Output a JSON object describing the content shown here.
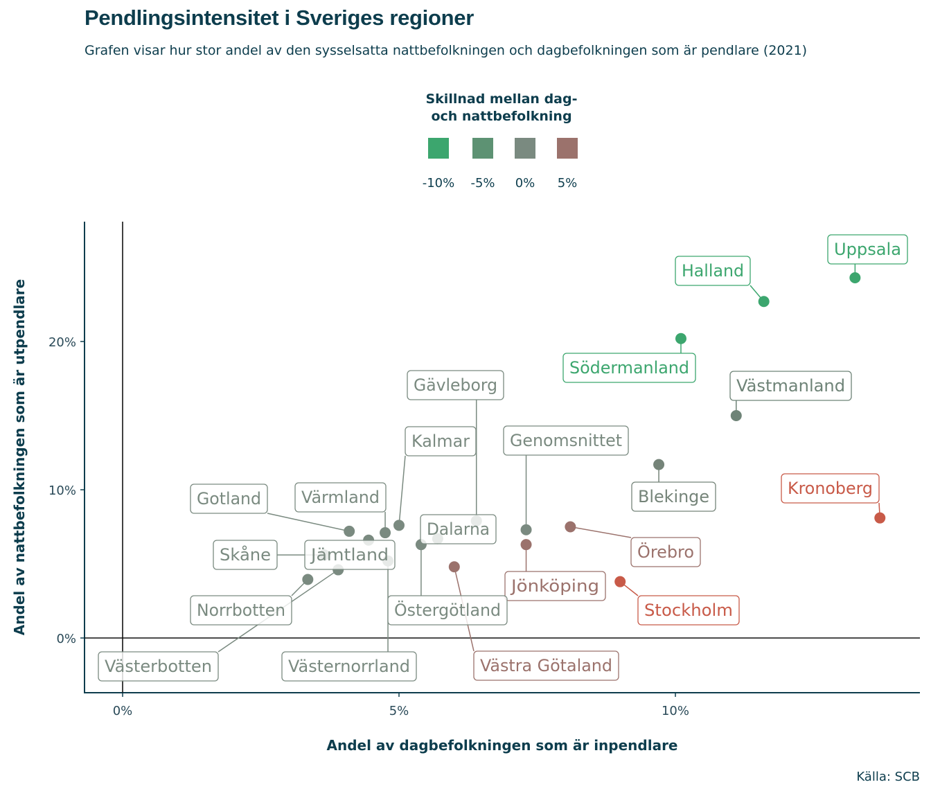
{
  "title": "Pendlingsintensitet i Sveriges regioner",
  "subtitle": "Grafen visar hur stor andel av den sysselsatta nattbefolkningen och dagbefolkningen som är pendlare (2021)",
  "caption": "Källa: SCB",
  "colors": {
    "text": "#0d3d4d",
    "neutral": "#7a8a80",
    "green": "#3ca66e",
    "green_mid": "#5a9272",
    "brown": "#9b726c",
    "red": "#c85a48"
  },
  "chart_data": {
    "type": "scatter",
    "title": "Pendlingsintensitet i Sveriges regioner",
    "xlabel": "Andel av dagbefolkningen som är inpendlare",
    "ylabel": "Andel av nattbefolkningen som är utpendlare",
    "xlim": [
      -0.7,
      14.4
    ],
    "ylim": [
      -3.7,
      27.5
    ],
    "xticks": [
      {
        "value": 0,
        "label": "0%"
      },
      {
        "value": 5,
        "label": "5%"
      },
      {
        "value": 10,
        "label": "10%"
      }
    ],
    "yticks": [
      {
        "value": 0,
        "label": "0%"
      },
      {
        "value": 10,
        "label": "10%"
      },
      {
        "value": 20,
        "label": "20%"
      }
    ],
    "legend": {
      "title_lines": [
        "Skillnad mellan dag-",
        "och nattbefolkning"
      ],
      "placement": "top-center",
      "items": [
        {
          "label": "-10%",
          "color": "#3ca66e"
        },
        {
          "label": "-5%",
          "color": "#5d9273"
        },
        {
          "label": "0%",
          "color": "#7a8a80"
        },
        {
          "label": "5%",
          "color": "#9b726c"
        }
      ]
    },
    "points": [
      {
        "name": "Uppsala",
        "x": 13.25,
        "y": 24.3,
        "color": "#3ca66e"
      },
      {
        "name": "Halland",
        "x": 11.6,
        "y": 22.7,
        "color": "#3ca66e"
      },
      {
        "name": "Södermanland",
        "x": 10.1,
        "y": 20.2,
        "color": "#3ca66e"
      },
      {
        "name": "Västmanland",
        "x": 11.1,
        "y": 15.0,
        "color": "#6e8377"
      },
      {
        "name": "Blekinge",
        "x": 9.7,
        "y": 11.7,
        "color": "#758479"
      },
      {
        "name": "Kronoberg",
        "x": 13.7,
        "y": 8.1,
        "color": "#c85a48"
      },
      {
        "name": "Genomsnittet",
        "x": 7.3,
        "y": 7.3,
        "color": "#7a8a80"
      },
      {
        "name": "Örebro",
        "x": 8.1,
        "y": 7.5,
        "color": "#9b726c"
      },
      {
        "name": "Jönköping",
        "x": 7.3,
        "y": 6.3,
        "color": "#9b726c"
      },
      {
        "name": "Stockholm",
        "x": 9.0,
        "y": 3.8,
        "color": "#c85a48"
      },
      {
        "name": "Västra Götaland",
        "x": 6.0,
        "y": 4.8,
        "color": "#9b726c"
      },
      {
        "name": "Gävleborg",
        "x": 6.4,
        "y": 7.9,
        "color": "#7a8a80"
      },
      {
        "name": "Kalmar",
        "x": 5.0,
        "y": 7.6,
        "color": "#7a8a80"
      },
      {
        "name": "Dalarna",
        "x": 5.7,
        "y": 6.7,
        "color": "#7a8a80"
      },
      {
        "name": "Östergötland",
        "x": 5.4,
        "y": 6.3,
        "color": "#7a8a80"
      },
      {
        "name": "Värmland",
        "x": 4.75,
        "y": 7.1,
        "color": "#7a8a80"
      },
      {
        "name": "Gotland",
        "x": 4.1,
        "y": 7.2,
        "color": "#7a8a80"
      },
      {
        "name": "Jämtland",
        "x": 4.45,
        "y": 6.6,
        "color": "#7a8a80"
      },
      {
        "name": "Skåne",
        "x": 3.65,
        "y": 5.6,
        "color": "#7a8a80"
      },
      {
        "name": "Västernorrland",
        "x": 4.8,
        "y": 5.2,
        "color": "#7a8a80"
      },
      {
        "name": "Norrbotten",
        "x": 3.35,
        "y": 3.95,
        "color": "#7a8a80"
      },
      {
        "name": "Västerbotten",
        "x": 3.9,
        "y": 4.6,
        "color": "#7a8a80"
      }
    ]
  }
}
